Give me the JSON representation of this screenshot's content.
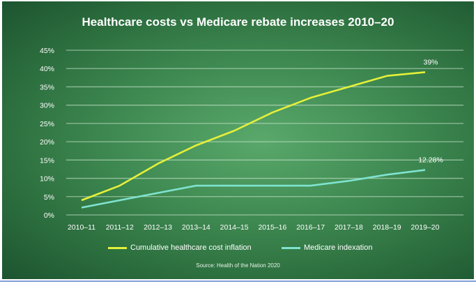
{
  "chart_data": {
    "type": "line",
    "title": "Healthcare costs vs Medicare rebate increases 2010–20",
    "categories": [
      "2010–11",
      "2011–12",
      "2012–13",
      "2013–14",
      "2014–15",
      "2015–16",
      "2016–17",
      "2017–18",
      "2018–19",
      "2019–20"
    ],
    "ylim": [
      0,
      45
    ],
    "yticks": [
      "0%",
      "5%",
      "10%",
      "15%",
      "20%",
      "25%",
      "30%",
      "35%",
      "40%",
      "45%"
    ],
    "grid": true,
    "legend_position": "bottom",
    "series": [
      {
        "name": "Cumulative healthcare cost inflation",
        "color": "#e4f03a",
        "values": [
          4,
          8,
          14,
          19,
          23,
          28,
          32,
          35,
          38,
          39
        ],
        "end_label": "39%"
      },
      {
        "name": "Medicare indexation",
        "color": "#7fe3cf",
        "values": [
          2,
          4,
          6,
          8,
          8,
          8,
          8,
          9.3,
          11,
          12.28
        ],
        "end_label": "12.28%"
      }
    ],
    "source": "Source: Health of the Nation 2020"
  }
}
